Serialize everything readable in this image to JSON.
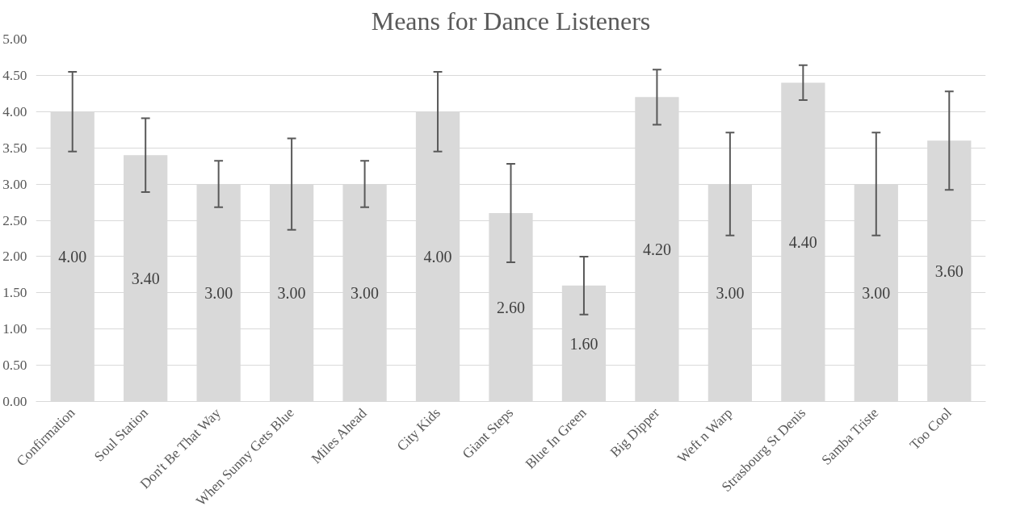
{
  "chart_data": {
    "type": "bar",
    "title": "Means for Dance Listeners",
    "categories": [
      "Confirmation",
      "Soul Station",
      "Don't Be That Way",
      "When Sunny Gets Blue",
      "Miles Ahead",
      "City Kids",
      "Giant Steps",
      "Blue In Green",
      "Big Dipper",
      "Weft n Warp",
      "Strasbourg St Denis",
      "Samba Triste",
      "Too Cool"
    ],
    "values": [
      4.0,
      3.4,
      3.0,
      3.0,
      3.0,
      4.0,
      2.6,
      1.6,
      4.2,
      3.0,
      4.4,
      3.0,
      3.6
    ],
    "errors": [
      0.55,
      0.51,
      0.32,
      0.63,
      0.32,
      0.55,
      0.68,
      0.4,
      0.38,
      0.71,
      0.24,
      0.71,
      0.68
    ],
    "color": "#d9d9d9",
    "value_labels": [
      "4.00",
      "3.40",
      "3.00",
      "3.00",
      "3.00",
      "4.00",
      "2.60",
      "1.60",
      "4.20",
      "3.00",
      "4.40",
      "3.00",
      "3.60"
    ],
    "ylim": [
      0,
      5
    ],
    "yticks": [
      {
        "value": 0,
        "label": "0.00"
      },
      {
        "value": 0.5,
        "label": "0.50"
      },
      {
        "value": 1,
        "label": "1.00"
      },
      {
        "value": 1.5,
        "label": "1.50"
      },
      {
        "value": 2,
        "label": "2.00"
      },
      {
        "value": 2.5,
        "label": "2.50"
      },
      {
        "value": 3,
        "label": "3.00"
      },
      {
        "value": 3.5,
        "label": "3.50"
      },
      {
        "value": 4,
        "label": "4.00"
      },
      {
        "value": 4.5,
        "label": "4.50"
      },
      {
        "value": 5,
        "label": "5.00"
      }
    ],
    "grid": "y"
  }
}
